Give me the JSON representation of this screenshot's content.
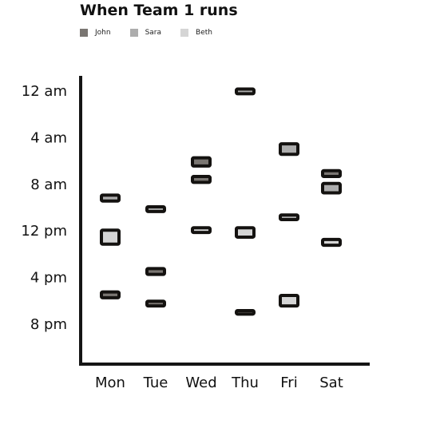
{
  "chart_data": {
    "type": "scatter",
    "title": "When Team 1 runs",
    "xlabel": "",
    "ylabel": "",
    "categories": [
      "Mon",
      "Tue",
      "Wed",
      "Thu",
      "Fri",
      "Sat"
    ],
    "y_ticks": [
      {
        "hour": 0,
        "label": "12 am"
      },
      {
        "hour": 4,
        "label": "4 am"
      },
      {
        "hour": 8,
        "label": "8 am"
      },
      {
        "hour": 12,
        "label": "12 pm"
      },
      {
        "hour": 16,
        "label": "4 pm"
      },
      {
        "hour": 20,
        "label": "8 pm"
      }
    ],
    "ylim": [
      -1,
      24
    ],
    "legend_position": "top-left",
    "grid": false,
    "series": [
      {
        "name": "John",
        "color": "#7a7672",
        "points": [
          {
            "day": "Mon",
            "start": 17.3,
            "end": 17.8
          },
          {
            "day": "Tue",
            "start": 15.3,
            "end": 15.8
          },
          {
            "day": "Tue",
            "start": 18.1,
            "end": 18.5
          },
          {
            "day": "Wed",
            "start": 5.8,
            "end": 6.5
          },
          {
            "day": "Wed",
            "start": 7.4,
            "end": 7.9
          },
          {
            "day": "Thu",
            "start": 18.9,
            "end": 19.2
          },
          {
            "day": "Sat",
            "start": 6.9,
            "end": 7.4
          }
        ]
      },
      {
        "name": "Sara",
        "color": "#adadad",
        "points": [
          {
            "day": "Mon",
            "start": 9.0,
            "end": 9.5
          },
          {
            "day": "Tue",
            "start": 10.0,
            "end": 10.4
          },
          {
            "day": "Thu",
            "start": -0.1,
            "end": 0.3
          },
          {
            "day": "Fri",
            "start": 4.6,
            "end": 5.5
          },
          {
            "day": "Fri",
            "start": 10.7,
            "end": 11.1
          },
          {
            "day": "Sat",
            "start": 8.0,
            "end": 8.8
          }
        ]
      },
      {
        "name": "Beth",
        "color": "#d5d5d5",
        "points": [
          {
            "day": "Mon",
            "start": 12.0,
            "end": 13.2
          },
          {
            "day": "Wed",
            "start": 11.8,
            "end": 12.2
          },
          {
            "day": "Thu",
            "start": 11.8,
            "end": 12.6
          },
          {
            "day": "Fri",
            "start": 17.6,
            "end": 18.5
          },
          {
            "day": "Sat",
            "start": 12.8,
            "end": 13.3
          }
        ]
      }
    ]
  }
}
